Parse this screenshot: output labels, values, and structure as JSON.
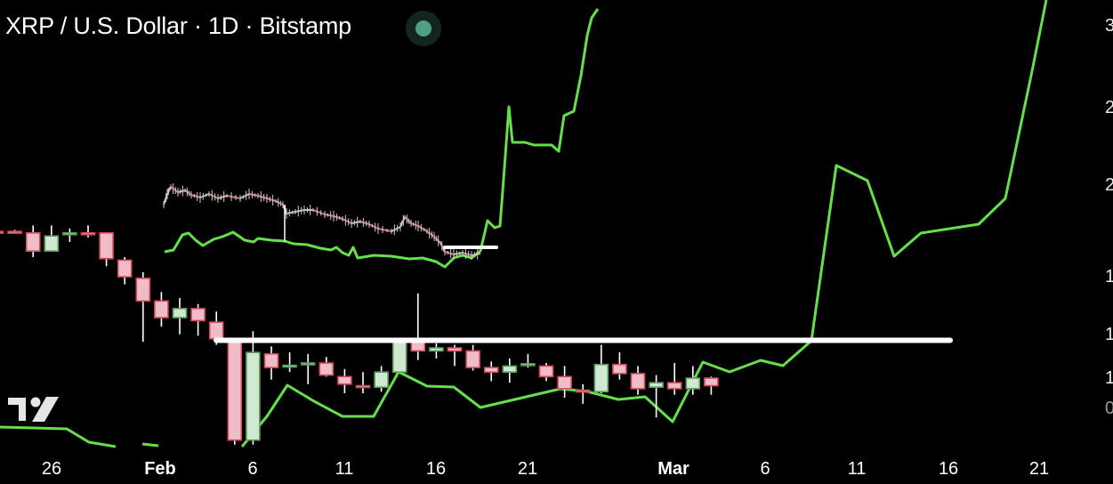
{
  "header": {
    "title": "XRP / U.S. Dollar · 1D · Bitstamp",
    "status_color": "#4fa084"
  },
  "chart_data": {
    "type": "candlestick",
    "symbol": "XRP / U.S. Dollar",
    "interval": "1D",
    "exchange": "Bitstamp",
    "y_axis_ticks_visible": [
      "3",
      "2",
      "2",
      "1",
      "1",
      "1",
      "0"
    ],
    "x_axis_ticks": [
      {
        "label": "26",
        "date": "Jan 26",
        "month": false
      },
      {
        "label": "Feb",
        "date": "Feb 1",
        "month": true
      },
      {
        "label": "6",
        "date": "Feb 6",
        "month": false
      },
      {
        "label": "11",
        "date": "Feb 11",
        "month": false
      },
      {
        "label": "16",
        "date": "Feb 16",
        "month": false
      },
      {
        "label": "21",
        "date": "Feb 21",
        "month": false
      },
      {
        "label": "Mar",
        "date": "Mar 1",
        "month": true
      },
      {
        "label": "6",
        "date": "Mar 6",
        "month": false
      },
      {
        "label": "11",
        "date": "Mar 11",
        "month": false
      },
      {
        "label": "16",
        "date": "Mar 16",
        "month": false
      },
      {
        "label": "21",
        "date": "Mar 21",
        "month": false
      }
    ],
    "ylim": [
      1.71,
      4.71
    ],
    "colors": {
      "up_body": "#cfe8cf",
      "up_border": "#5a9a5a",
      "down_body": "#f0bcc8",
      "down_border": "#d04a5a",
      "overlay_line": "#66e04a",
      "level_line": "#ffffff"
    },
    "candles": [
      {
        "date": "Jan 23",
        "o": 3.18,
        "h": 3.18,
        "l": 3.18,
        "c": 3.178
      },
      {
        "date": "Jan 24",
        "o": 3.18,
        "h": 3.19,
        "l": 3.17,
        "c": 3.178
      },
      {
        "date": "Jan 25",
        "o": 3.17,
        "h": 3.22,
        "l": 3.01,
        "c": 3.05
      },
      {
        "date": "Jan 26",
        "o": 3.05,
        "h": 3.22,
        "l": 3.05,
        "c": 3.15
      },
      {
        "date": "Jan 27",
        "o": 3.16,
        "h": 3.2,
        "l": 3.11,
        "c": 3.17
      },
      {
        "date": "Jan 28",
        "o": 3.17,
        "h": 3.22,
        "l": 3.14,
        "c": 3.16
      },
      {
        "date": "Jan 29",
        "o": 3.17,
        "h": 3.17,
        "l": 2.95,
        "c": 3.0
      },
      {
        "date": "Jan 30",
        "o": 2.99,
        "h": 3.01,
        "l": 2.83,
        "c": 2.88
      },
      {
        "date": "Jan 31",
        "o": 2.87,
        "h": 2.91,
        "l": 2.45,
        "c": 2.72
      },
      {
        "date": "Feb 1",
        "o": 2.72,
        "h": 2.78,
        "l": 2.55,
        "c": 2.61
      },
      {
        "date": "Feb 2",
        "o": 2.61,
        "h": 2.74,
        "l": 2.5,
        "c": 2.67
      },
      {
        "date": "Feb 3",
        "o": 2.67,
        "h": 2.7,
        "l": 2.49,
        "c": 2.59
      },
      {
        "date": "Feb 4",
        "o": 2.58,
        "h": 2.65,
        "l": 2.43,
        "c": 2.47
      },
      {
        "date": "Feb 5",
        "o": 2.45,
        "h": 2.45,
        "l": 1.77,
        "c": 1.8
      },
      {
        "date": "Feb 6",
        "o": 1.8,
        "h": 2.52,
        "l": 1.77,
        "c": 2.38
      },
      {
        "date": "Feb 7",
        "o": 2.37,
        "h": 2.42,
        "l": 2.2,
        "c": 2.28
      },
      {
        "date": "Feb 8",
        "o": 2.29,
        "h": 2.38,
        "l": 2.25,
        "c": 2.295
      },
      {
        "date": "Feb 9",
        "o": 2.3,
        "h": 2.37,
        "l": 2.17,
        "c": 2.31
      },
      {
        "date": "Feb 10",
        "o": 2.31,
        "h": 2.35,
        "l": 2.22,
        "c": 2.23
      },
      {
        "date": "Feb 11",
        "o": 2.22,
        "h": 2.27,
        "l": 2.11,
        "c": 2.17
      },
      {
        "date": "Feb 12",
        "o": 2.16,
        "h": 2.25,
        "l": 2.11,
        "c": 2.15
      },
      {
        "date": "Feb 13",
        "o": 2.15,
        "h": 2.29,
        "l": 2.12,
        "c": 2.25
      },
      {
        "date": "Feb 14",
        "o": 2.25,
        "h": 2.45,
        "l": 2.25,
        "c": 2.45
      },
      {
        "date": "Feb 15",
        "o": 2.45,
        "h": 2.77,
        "l": 2.33,
        "c": 2.39
      },
      {
        "date": "Feb 16",
        "o": 2.39,
        "h": 2.44,
        "l": 2.34,
        "c": 2.41
      },
      {
        "date": "Feb 17",
        "o": 2.41,
        "h": 2.43,
        "l": 2.29,
        "c": 2.39
      },
      {
        "date": "Feb 18",
        "o": 2.39,
        "h": 2.43,
        "l": 2.26,
        "c": 2.28
      },
      {
        "date": "Feb 19",
        "o": 2.28,
        "h": 2.32,
        "l": 2.19,
        "c": 2.25
      },
      {
        "date": "Feb 20",
        "o": 2.25,
        "h": 2.34,
        "l": 2.18,
        "c": 2.29
      },
      {
        "date": "Feb 21",
        "o": 2.3,
        "h": 2.37,
        "l": 2.28,
        "c": 2.305
      },
      {
        "date": "Feb 22",
        "o": 2.29,
        "h": 2.31,
        "l": 2.19,
        "c": 2.22
      },
      {
        "date": "Feb 23",
        "o": 2.22,
        "h": 2.29,
        "l": 2.08,
        "c": 2.14
      },
      {
        "date": "Feb 24",
        "o": 2.13,
        "h": 2.17,
        "l": 2.04,
        "c": 2.125
      },
      {
        "date": "Feb 25",
        "o": 2.12,
        "h": 2.43,
        "l": 2.11,
        "c": 2.3
      },
      {
        "date": "Feb 26",
        "o": 2.3,
        "h": 2.38,
        "l": 2.2,
        "c": 2.24
      },
      {
        "date": "Feb 27",
        "o": 2.24,
        "h": 2.29,
        "l": 2.1,
        "c": 2.14
      },
      {
        "date": "Feb 28",
        "o": 2.15,
        "h": 2.23,
        "l": 1.95,
        "c": 2.18
      },
      {
        "date": "Mar 1",
        "o": 2.18,
        "h": 2.31,
        "l": 2.1,
        "c": 2.14
      },
      {
        "date": "Mar 2",
        "o": 2.14,
        "h": 2.29,
        "l": 2.1,
        "c": 2.21
      },
      {
        "date": "Mar 3",
        "o": 2.21,
        "h": 2.22,
        "l": 2.1,
        "c": 2.16
      }
    ],
    "horizontal_level": 2.46,
    "grid": false
  },
  "branding": {
    "logo": "TV"
  }
}
